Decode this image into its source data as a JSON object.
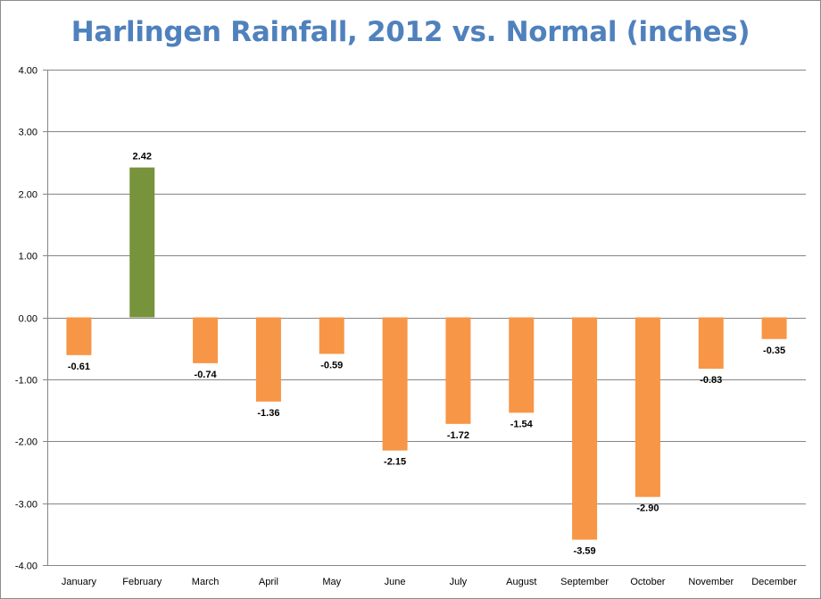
{
  "chart_data": {
    "type": "bar",
    "title": "Harlingen Rainfall, 2012 vs. Normal (inches)",
    "xlabel": "",
    "ylabel": "",
    "ylim": [
      -4,
      4
    ],
    "yticks": [
      "4.00",
      "3.00",
      "2.00",
      "1.00",
      "0.00",
      "-1.00",
      "-2.00",
      "-3.00",
      "-4.00"
    ],
    "ytick_values": [
      4,
      3,
      2,
      1,
      0,
      -1,
      -2,
      -3,
      -4
    ],
    "grid": true,
    "legend": "none",
    "categories": [
      "January",
      "February",
      "March",
      "April",
      "May",
      "June",
      "July",
      "August",
      "September",
      "October",
      "November",
      "December"
    ],
    "values": [
      -0.61,
      2.42,
      -0.74,
      -1.36,
      -0.59,
      -2.15,
      -1.72,
      -1.54,
      -3.59,
      -2.9,
      -0.83,
      -0.35
    ],
    "data_labels": [
      "-0.61",
      "2.42",
      "-0.74",
      "-1.36",
      "-0.59",
      "-2.15",
      "-1.72",
      "-1.54",
      "-3.59",
      "-2.90",
      "-0.83",
      "-0.35"
    ],
    "colors": {
      "positive": "#77933c",
      "negative": "#f79646",
      "title": "#4f81bd",
      "grid": "#868686"
    }
  }
}
